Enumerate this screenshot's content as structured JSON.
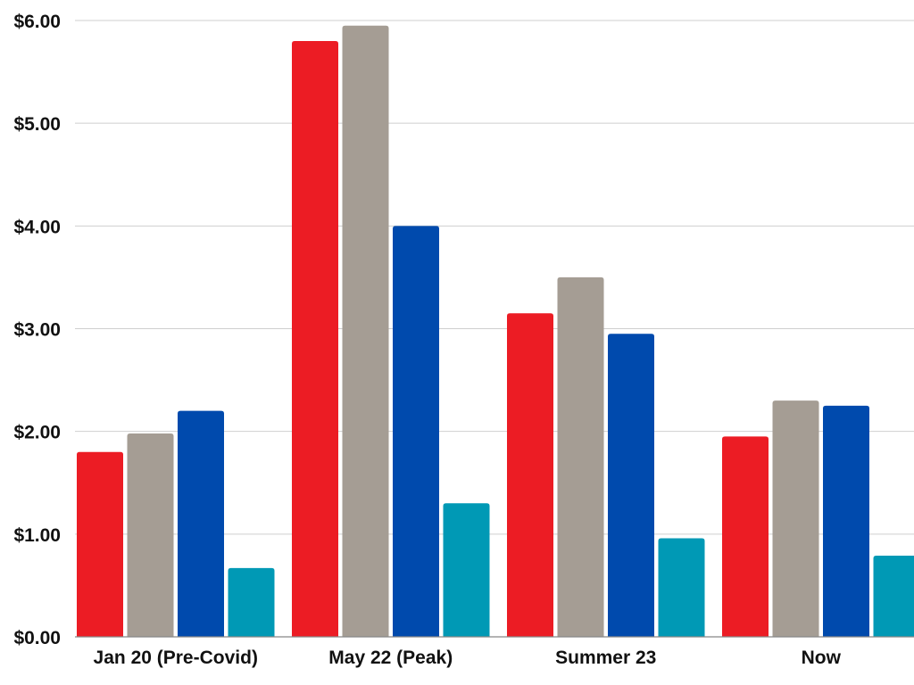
{
  "chart_data": {
    "type": "bar",
    "title": "",
    "xlabel": "",
    "ylabel": "",
    "categories": [
      "Jan 20 (Pre-Covid)",
      "May 22 (Peak)",
      "Summer 23",
      "Now"
    ],
    "y_tick_labels": [
      "$0.00",
      "$1.00",
      "$2.00",
      "$3.00",
      "$4.00",
      "$5.00",
      "$6.00"
    ],
    "y_ticks": [
      0,
      1,
      2,
      3,
      4,
      5,
      6
    ],
    "ylim": [
      0,
      6
    ],
    "grid": true,
    "legend": "none",
    "series": [
      {
        "name": "series-1",
        "color": "#ec1c24",
        "values": [
          1.8,
          5.8,
          3.15,
          1.95
        ]
      },
      {
        "name": "series-2",
        "color": "#a59d94",
        "values": [
          1.98,
          5.95,
          3.5,
          2.3
        ]
      },
      {
        "name": "series-3",
        "color": "#004aad",
        "values": [
          2.2,
          4.0,
          2.95,
          2.25
        ]
      },
      {
        "name": "series-4",
        "color": "#0099b5",
        "values": [
          0.67,
          1.3,
          0.96,
          0.79
        ]
      }
    ]
  }
}
